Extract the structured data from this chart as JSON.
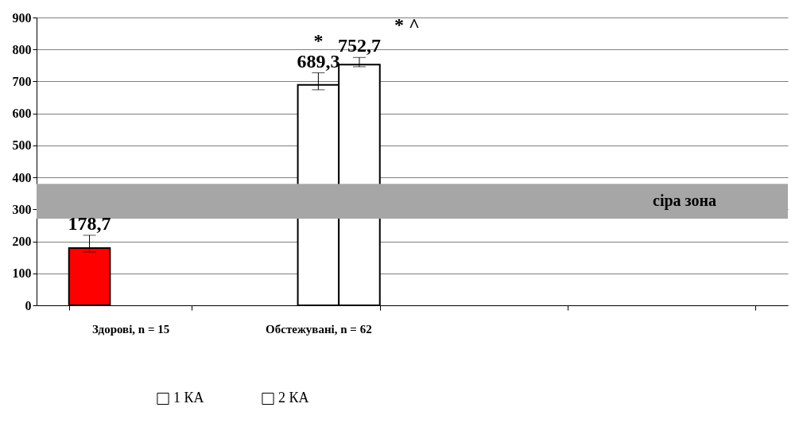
{
  "chart_data": {
    "type": "bar",
    "categories": [
      "Здорові, n = 15",
      "Обстежувані, n = 62",
      null,
      null
    ],
    "series": [
      {
        "color": "#ff0000",
        "values": [
          178.7,
          null,
          null,
          null
        ],
        "errors": [
          [
            167,
            219
          ],
          null,
          null,
          null
        ],
        "value_labels": [
          "178,7",
          null,
          null,
          null
        ]
      },
      {
        "name": "1 КА",
        "color": "#ffffff",
        "values": [
          null,
          689.3,
          null,
          null
        ],
        "errors": [
          null,
          [
            674,
            727
          ],
          null,
          null
        ],
        "value_labels": [
          null,
          "689,3",
          null,
          null
        ]
      },
      {
        "name": "2 КА",
        "color": "#ffffff",
        "values": [
          null,
          752.7,
          null,
          null
        ],
        "errors": [
          null,
          [
            746,
            775
          ],
          null,
          null
        ],
        "value_labels": [
          null,
          "752,7",
          null,
          null
        ]
      }
    ],
    "ylim": [
      0,
      900
    ],
    "yticks": [
      0,
      100,
      200,
      300,
      400,
      500,
      600,
      700,
      800,
      900
    ],
    "grid": "y",
    "legend": "bottom",
    "bands": [
      {
        "axis": "y",
        "from": 271,
        "to": 380,
        "label": "сіра зона",
        "color": "#a6a6a6"
      }
    ],
    "annotations": [
      "*",
      "* ^"
    ]
  }
}
